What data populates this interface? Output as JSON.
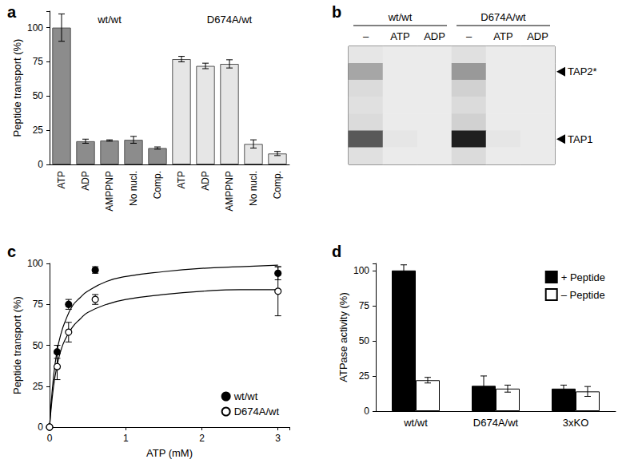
{
  "chart_data": [
    {
      "title": "a",
      "type": "bar",
      "ylabel": "Peptide transport (%)",
      "categories": [
        "ATP",
        "ADP",
        "AMPPNP",
        "No nucl.",
        "Comp."
      ],
      "series": [
        {
          "name": "wt/wt",
          "color": "#8c8c8c",
          "values": [
            100,
            17,
            17.5,
            18,
            12
          ],
          "errors": [
            10,
            1.5,
            0.5,
            2.5,
            0.8
          ]
        },
        {
          "name": "D674A/wt",
          "color": "#e6e6e6",
          "values": [
            77,
            72,
            73.5,
            15,
            8
          ],
          "errors": [
            2,
            2,
            3,
            3,
            1.5
          ]
        }
      ],
      "ylim": [
        0,
        112
      ],
      "yticks": [
        0,
        25,
        50,
        75,
        100
      ]
    },
    {
      "title": "b",
      "type": "gel",
      "groups": [
        {
          "name": "wt/wt",
          "lanes": [
            "–",
            "ATP",
            "ADP"
          ]
        },
        {
          "name": "D674A/wt",
          "lanes": [
            "–",
            "ATP",
            "ADP"
          ]
        }
      ],
      "bands": [
        null,
        "TAP2*",
        null,
        null,
        null,
        "TAP1",
        null
      ],
      "cells": [
        [
          10,
          8,
          8,
          12,
          8,
          8
        ],
        [
          35,
          8,
          8,
          40,
          8,
          8
        ],
        [
          14,
          8,
          8,
          18,
          8,
          8
        ],
        [
          12,
          8,
          8,
          14,
          8,
          8
        ],
        [
          14,
          8,
          8,
          18,
          8,
          8
        ],
        [
          65,
          10,
          8,
          88,
          10,
          8
        ],
        [
          12,
          8,
          8,
          14,
          8,
          8
        ]
      ],
      "intensity_range": [
        0,
        100
      ]
    },
    {
      "title": "c",
      "type": "scatter",
      "xlabel": "ATP (mM)",
      "ylabel": "Peptide transport (%)",
      "xlim": [
        0,
        3.15
      ],
      "xticks": [
        0,
        1,
        2,
        3
      ],
      "ylim": [
        0,
        100
      ],
      "yticks": [
        0,
        25,
        50,
        75,
        100
      ],
      "legend": "lower right",
      "series": [
        {
          "name": "wt/wt",
          "color": "#000000",
          "marker": "circle",
          "x": [
            0,
            0.1,
            0.25,
            0.6,
            3
          ],
          "values": [
            0,
            46,
            75,
            96,
            94
          ],
          "errors": [
            0,
            4,
            3,
            2,
            4
          ],
          "fit": {
            "x": [
              0,
              0.05,
              0.1,
              0.15,
              0.2,
              0.3,
              0.4,
              0.5,
              0.75,
              1,
              1.5,
              2,
              2.5,
              3
            ],
            "values": [
              0,
              30,
              47,
              57,
              64,
              74,
              79,
              83,
              89,
              92,
              95,
              97,
              98,
              99
            ]
          }
        },
        {
          "name": "D674A/wt",
          "color": "#000000",
          "marker": "open_circle",
          "x": [
            0,
            0.1,
            0.25,
            0.6,
            3
          ],
          "values": [
            0,
            37,
            58,
            78,
            83
          ],
          "errors": [
            0,
            8,
            6,
            3,
            15
          ],
          "fit": {
            "x": [
              0,
              0.05,
              0.1,
              0.15,
              0.2,
              0.3,
              0.4,
              0.5,
              0.75,
              1,
              1.5,
              2,
              2.5,
              3
            ],
            "values": [
              0,
              24,
              38,
              47,
              53,
              61,
              66,
              70,
              75,
              78,
              81,
              83,
              84,
              84
            ]
          }
        }
      ]
    },
    {
      "title": "d",
      "type": "bar",
      "ylabel": "ATPase activity (%)",
      "categories": [
        "wt/wt",
        "D674A/wt",
        "3xKO"
      ],
      "legend": "upper right",
      "series": [
        {
          "name": "+ Peptide",
          "color": "#000000",
          "values": [
            100,
            18,
            16
          ],
          "errors": [
            4,
            7,
            2.5
          ]
        },
        {
          "name": "– Peptide",
          "color": "#ffffff",
          "values": [
            22,
            16,
            14
          ],
          "errors": [
            2,
            2.5,
            3.5
          ]
        }
      ],
      "ylim": [
        0,
        105
      ],
      "yticks": [
        0,
        25,
        50,
        75,
        100
      ]
    }
  ]
}
